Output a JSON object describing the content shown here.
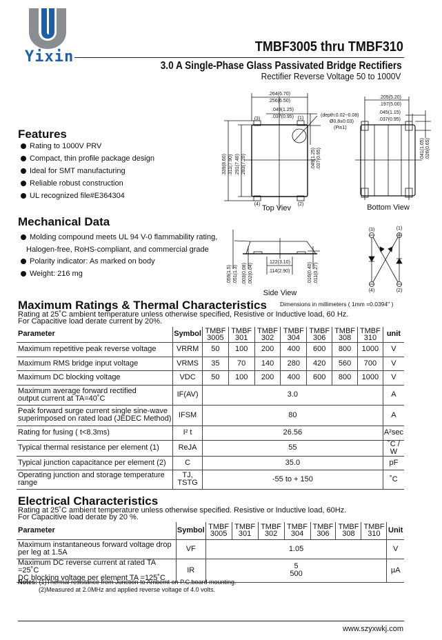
{
  "header": {
    "brand": "Yixin",
    "title": "TMBF3005 thru TMBF310",
    "subtitle": "3.0  A Single-Phase Glass Passivated Bridge Rectifiers",
    "subtitle2": "Rectifier Reverse Voltage 50 to 1000V",
    "brand_colors": {
      "blue": "#1d5ea8",
      "gray": "#8a8d91"
    }
  },
  "features": {
    "heading": "Features",
    "items": [
      "Rating to 1000V PRV",
      "Compact, thin profile package design",
      "Ideal for SMT manufacturing",
      "Reliable robust construction",
      "UL recognized file#E364304"
    ]
  },
  "mechanical": {
    "heading": "Mechanical Data",
    "items": [
      "Molding compound meets UL 94 V-0 flammability rating,",
      "Halogen-free, RoHS-compliant, and commercial grade",
      "Polarity indicator: As marked on body",
      "Weight: 216 mg"
    ]
  },
  "diagram": {
    "top_view": {
      "label": "Top Viev",
      "w1": ".264(6.70)",
      "w2": ".256(6.50)",
      "p1": ".049(1.25)",
      "p2": ".037(0.95)",
      "h1": ".339(8.60)",
      "h2": ".311(7.90)",
      "h3": ".291(7.40)",
      "h4": ".283(7.20)",
      "r1": ".049(1.25)",
      "r2": ".037(0.95)",
      "depth": "(depth:0.02~0.08)",
      "dia": "Ø0.8±0.03)",
      "pin1": "(Pin1)",
      "pins": [
        "(3)",
        "(1)",
        "(4)",
        "(2)"
      ]
    },
    "bottom_view": {
      "label": "Bottom View",
      "w1": ".205(5.20)",
      "w2": ".197(5.00)",
      "p1": ".045(1.15)",
      "p2": ".037(0.95)",
      "r1": ".041(1.05)",
      "r2": ".026(0.65)"
    },
    "side_view": {
      "label": "Side View",
      "a1": ".059(1.5)",
      "a2": ".051(1.3)",
      "b1": ".003(0.08)",
      "b2": ".002(0.04)",
      "c1": ".122(3.10)",
      "c2": ".114(2.90)",
      "d1": ".016(0.40)",
      "d2": ".011(0.27)"
    },
    "circuit": {
      "pins": [
        "(3)",
        "(1)",
        "(4)",
        "(2)"
      ]
    },
    "dimensions_note": "Dimensions in millimeters ( 1mm =0.0394\" )"
  },
  "max_ratings": {
    "heading": "Maximum Ratings & Thermal Characteristics",
    "note1": "Rating at 25˚C ambient temperature unless otherwise specified, Resistive or Inductive load, 60 Hz.",
    "note2": "For Capacitive load derate current by 20%.",
    "columns": {
      "parameter": "Parameter",
      "symbol": "Symbol",
      "models": [
        [
          "TMBF",
          "3005"
        ],
        [
          "TMBF",
          "301"
        ],
        [
          "TMBF",
          "302"
        ],
        [
          "TMBF",
          "304"
        ],
        [
          "TMBF",
          "306"
        ],
        [
          "TMBF",
          "308"
        ],
        [
          "TMBF",
          "310"
        ]
      ],
      "unit": "unit"
    },
    "rows": [
      {
        "parameter": "Maximum repetitive peak reverse voltage",
        "symbol": "VRRM",
        "values": [
          "50",
          "100",
          "200",
          "400",
          "600",
          "800",
          "1000"
        ],
        "unit": "V"
      },
      {
        "parameter": "Maximum RMS bridge input voltage",
        "symbol": "VRMS",
        "values": [
          "35",
          "70",
          "140",
          "280",
          "420",
          "560",
          "700"
        ],
        "unit": "V"
      },
      {
        "parameter": "Maximum DC blocking voltage",
        "symbol": "VDC",
        "values": [
          "50",
          "100",
          "200",
          "400",
          "600",
          "800",
          "1000"
        ],
        "unit": "V"
      },
      {
        "parameter": "Maximum average forward rectified\noutput current at TA=40˚C",
        "symbol": "IF(AV)",
        "value": "3.0",
        "unit": "A"
      },
      {
        "parameter": "Peak forward surge current single sine-wave\nsuperimposed on rated load (JEDEC Method)",
        "symbol": "IFSM",
        "value": "80",
        "unit": "A"
      },
      {
        "parameter": "Rating for fusing ( t<8.3ms)",
        "symbol": "I² t",
        "value": "26.56",
        "unit": "A²sec"
      },
      {
        "parameter": "Typical  thermal resistance per element (1)",
        "symbol": "ReJA",
        "value": "55",
        "unit": "˚C / W"
      },
      {
        "parameter": "Typical junction capacitance per element (2)",
        "symbol": "C",
        "value": "35.0",
        "unit": "pF"
      },
      {
        "parameter": "Operating junction and storage temperature\nrange",
        "symbol": "TJ,\nTSTG",
        "value": "-55 to + 150",
        "unit": "˚C"
      }
    ]
  },
  "electrical": {
    "heading": "Electrical Characteristics",
    "note1": "Rating at 25˚C ambient temperature unless otherwise specified. Resistive or Inductive load, 60Hz.",
    "note2": "For Capacitive load derate by 20 %.",
    "columns": {
      "parameter": "Parameter",
      "symbol": "Symbol",
      "models": [
        [
          "TMBF",
          "3005"
        ],
        [
          "TMBF",
          "301"
        ],
        [
          "TMBF",
          "302"
        ],
        [
          "TMBF",
          "304"
        ],
        [
          "TMBF",
          "306"
        ],
        [
          "TMBF",
          "308"
        ],
        [
          "TMBF",
          "310"
        ]
      ],
      "unit": "Unit"
    },
    "rows": [
      {
        "parameter": "Maximum instantaneous forward voltage drop\nper leg at 1.5A",
        "symbol": "VF",
        "value": "1.05",
        "unit": "V"
      },
      {
        "parameter": "Maximum DC reverse current at rated  TA =25˚C\nDC blocking voltage per element        TA =125˚C",
        "symbol": "IR",
        "value": "5\n500",
        "unit": "µA"
      }
    ]
  },
  "notes": {
    "label": "Notes:",
    "n1": " (1)Thermal resistance from Junction to Ambemt on P.C.board mounting.",
    "n2": "(2)Measured at 2.0MHz and applied reverse voltage of 4.0 volts."
  },
  "footer": {
    "website": "www.szyxwkj.com"
  }
}
